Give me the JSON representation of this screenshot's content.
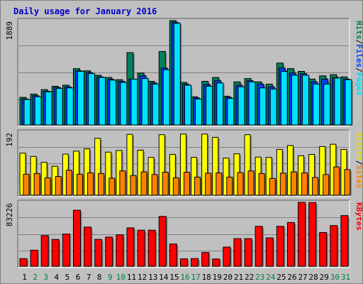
{
  "chart_data": {
    "title": "Daily usage for January 2016",
    "categories": [
      "1",
      "2",
      "3",
      "4",
      "5",
      "6",
      "7",
      "8",
      "9",
      "10",
      "11",
      "12",
      "13",
      "14",
      "15",
      "16",
      "17",
      "18",
      "19",
      "20",
      "21",
      "22",
      "23",
      "24",
      "25",
      "26",
      "27",
      "28",
      "29",
      "30",
      "31"
    ],
    "weekend_categories": [
      "2",
      "3",
      "9",
      "10",
      "16",
      "17",
      "23",
      "24",
      "30",
      "31"
    ],
    "panels": [
      {
        "type": "bar",
        "max_label": "1889",
        "ymax": 1889,
        "legend": [
          {
            "text": "Hits",
            "color": "#008040"
          },
          {
            "text": "/",
            "color": "#000000"
          },
          {
            "text": "Files",
            "color": "#0040ff"
          },
          {
            "text": "/",
            "color": "#000000"
          },
          {
            "text": "Pages",
            "color": "#00e0ff"
          }
        ],
        "series": [
          {
            "name": "Hits",
            "color": "#00805c",
            "values": [
              500,
              560,
              640,
              700,
              720,
              1020,
              980,
              900,
              860,
              820,
              1310,
              940,
              790,
              1330,
              1900,
              770,
              510,
              790,
              860,
              520,
              780,
              840,
              780,
              740,
              1120,
              1020,
              970,
              830,
              890,
              910,
              870
            ]
          },
          {
            "name": "Files",
            "color": "#0040ff",
            "values": [
              470,
              530,
              610,
              680,
              690,
              980,
              950,
              870,
              830,
              790,
              830,
              890,
              760,
              1030,
              1860,
              740,
              490,
              730,
              800,
              500,
              720,
              800,
              740,
              690,
              1030,
              940,
              930,
              780,
              830,
              860,
              830
            ]
          },
          {
            "name": "Pages",
            "color": "#00e0ff",
            "values": [
              460,
              510,
              600,
              660,
              670,
              970,
              930,
              860,
              810,
              770,
              830,
              840,
              740,
              1000,
              1840,
              720,
              470,
              700,
              760,
              480,
              690,
              780,
              670,
              650,
              970,
              900,
              900,
              740,
              740,
              850,
              820
            ]
          }
        ]
      },
      {
        "type": "bar",
        "max_label": "192",
        "ymax": 192,
        "legend": [
          {
            "text": "Visits",
            "color": "#e0e000"
          },
          {
            "text": "/",
            "color": "#000000"
          },
          {
            "text": "Sites",
            "color": "#ff8000"
          }
        ],
        "series": [
          {
            "name": "Visits",
            "color": "#ffff00",
            "values": [
              128,
              118,
              100,
              88,
              125,
              134,
              141,
              173,
              131,
              136,
              185,
              137,
              115,
              184,
              124,
              186,
              115,
              186,
              176,
              113,
              126,
              184,
              116,
              115,
              139,
              151,
              120,
              124,
              148,
              155,
              139
            ]
          },
          {
            "name": "Sites",
            "color": "#ff8000",
            "values": [
              64,
              66,
              53,
              57,
              76,
              64,
              68,
              66,
              52,
              74,
              60,
              71,
              63,
              70,
              53,
              70,
              55,
              67,
              68,
              55,
              69,
              74,
              66,
              51,
              67,
              71,
              68,
              54,
              63,
              86,
              78
            ]
          }
        ]
      },
      {
        "type": "bar",
        "max_label": "83226",
        "ymax": 83226,
        "legend": [
          {
            "text": "KBytes",
            "color": "#ff0000"
          }
        ],
        "series": [
          {
            "name": "KBytes",
            "color": "#ff0000",
            "values": [
              10000,
              21000,
              40000,
              35000,
              42000,
              73000,
              51000,
              35000,
              38000,
              41000,
              50000,
              47000,
              47000,
              65000,
              29000,
              9700,
              10000,
              18000,
              9500,
              25000,
              36000,
              36000,
              52000,
              37000,
              52000,
              57000,
              86000,
              83000,
              44000,
              53000,
              66000
            ]
          }
        ]
      }
    ]
  }
}
